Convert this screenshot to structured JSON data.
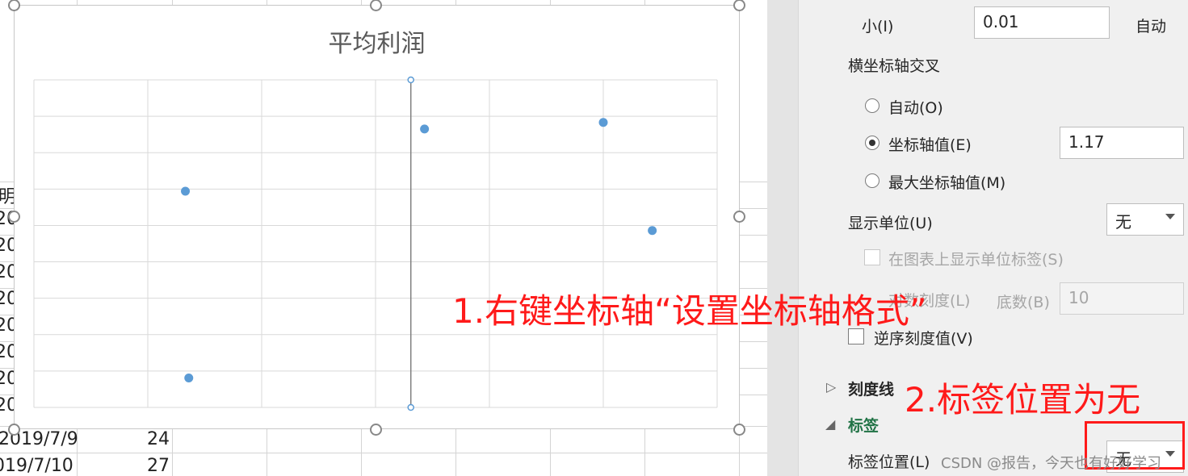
{
  "sheet": {
    "column_fragment_header": "明",
    "row_fragments": [
      "20",
      "20",
      "20",
      "20",
      "20",
      "20",
      "20",
      "20"
    ],
    "rows": [
      {
        "date": "2019/7/9",
        "value": "24"
      },
      {
        "date": "019/7/10",
        "value": "27"
      }
    ]
  },
  "chart_data": {
    "type": "scatter",
    "title": "平均利润",
    "xlabel": "",
    "ylabel": "",
    "grid": true,
    "legend": "none",
    "tick_labels": "none",
    "point_color": "#5b9bd5",
    "series": [
      {
        "values": [
          {
            "x": 1.33,
            "y": 0.66
          },
          {
            "x": 1.36,
            "y": 0.09
          },
          {
            "x": 3.43,
            "y": 0.85
          },
          {
            "x": 5.0,
            "y": 0.87
          },
          {
            "x": 5.43,
            "y": 0.54
          }
        ]
      }
    ],
    "vertical_axis": {
      "x": 3.31
    },
    "xlim": [
      0,
      6
    ],
    "ylim": [
      0,
      1
    ]
  },
  "pane": {
    "min_label": "小(I)",
    "min_value": "0.01",
    "min_auto": "自动",
    "h_cross_title": "横坐标轴交叉",
    "radio_auto": "自动(O)",
    "radio_axis_value": "坐标轴值(E)",
    "axis_value": "1.17",
    "radio_max": "最大坐标轴值(M)",
    "display_unit_label": "显示单位(U)",
    "display_unit_value": "无",
    "show_unit_label": "在图表上显示单位标签(S)",
    "log_scale": "对数刻度(L)",
    "log_base_label": "底数(B)",
    "log_base_value": "10",
    "reverse_order": "逆序刻度值(V)",
    "section_ticks": "刻度线",
    "section_labels": "标签",
    "label_position": "标签位置(L)",
    "label_position_value": "无"
  },
  "annotations": {
    "step1": "1.右键坐标轴“设置坐标轴格式”",
    "step2": "2.标签位置为无",
    "watermark": "CSDN @报告，今天也有好好学习"
  },
  "colors": {
    "annotation": "#ff1a1a",
    "section_green": "#217346"
  }
}
